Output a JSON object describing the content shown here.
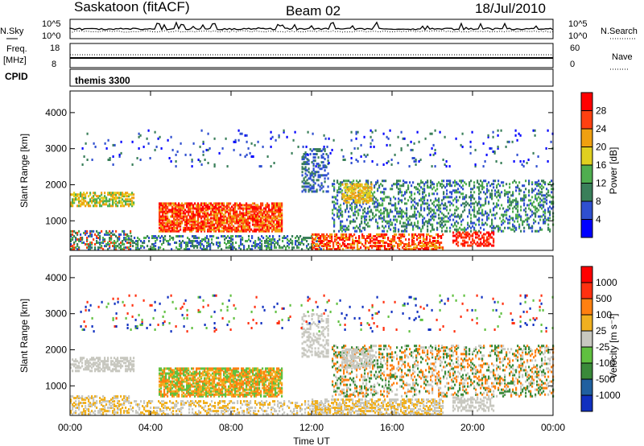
{
  "header": {
    "station": "Saskatoon (fitACF)",
    "beam": "Beam 02",
    "date": "18/Jul/2010"
  },
  "strip_labels": {
    "nsky": "N.Sky",
    "nsearch": "N.Search",
    "freq_line1": "Freq.",
    "freq_line2": "[MHz]",
    "nave": "Nave",
    "cpid": "CPID",
    "cpid_value": "themis 3300"
  },
  "strip_ticks": {
    "noise_left": [
      "10^5",
      "10^0"
    ],
    "noise_right": [
      "10^5",
      "10^0"
    ],
    "freq_left": [
      "18",
      "8"
    ],
    "freq_right": [
      "60",
      "0"
    ]
  },
  "chart_data": [
    {
      "type": "heatmap",
      "name": "power",
      "ylabel": "Slant Range [km]",
      "xlabel": "",
      "ylim": [
        180,
        4600
      ],
      "yticks": [
        "4000",
        "3000",
        "2000",
        "1000"
      ],
      "colorbar": {
        "label": "Power [dB]",
        "ticks": [
          "28",
          "24",
          "20",
          "16",
          "12",
          "8",
          "4"
        ],
        "colors": [
          "#0000ff",
          "#2f4fd0",
          "#3a7f5a",
          "#4fae4f",
          "#e0d020",
          "#f0a010",
          "#ff4010",
          "#ff0000"
        ]
      }
    },
    {
      "type": "heatmap",
      "name": "velocity",
      "ylabel": "Slant Range [km]",
      "xlabel": "Time UT",
      "ylim": [
        180,
        4600
      ],
      "yticks": [
        "4000",
        "3000",
        "2000",
        "1000"
      ],
      "xticks": [
        "00:00",
        "04:00",
        "08:00",
        "12:00",
        "16:00",
        "20:00",
        "00:00"
      ],
      "colorbar": {
        "label": "Velocity [m s⁻¹]",
        "ticks": [
          "1000",
          "500",
          "100",
          "25",
          "-25",
          "-100",
          "-500",
          "-1000"
        ],
        "colors": [
          "#1030c0",
          "#2060a0",
          "#3a8a3a",
          "#60c040",
          "#c8c8c0",
          "#f0b020",
          "#ff8010",
          "#ff3010",
          "#ff0000"
        ]
      }
    }
  ]
}
